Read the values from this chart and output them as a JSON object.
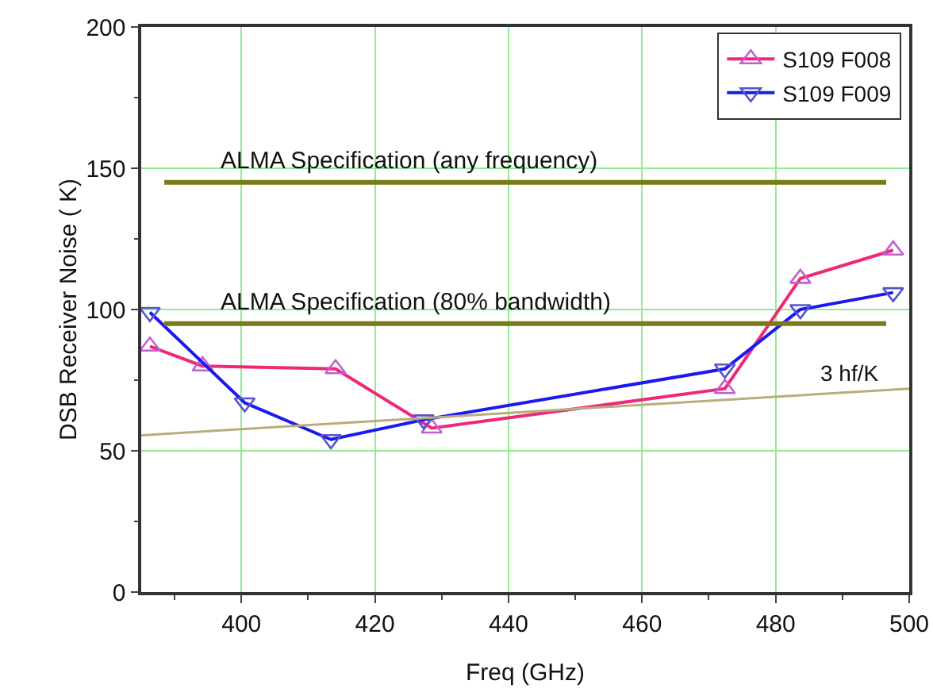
{
  "chart_data": {
    "type": "line",
    "xlabel": "Freq (GHz)",
    "ylabel": "DSB Receiver Noise ( K)",
    "xlim": [
      385,
      500
    ],
    "xticks": [
      400,
      420,
      440,
      460,
      480,
      500
    ],
    "ylim": [
      0,
      200
    ],
    "yticks": [
      0,
      50,
      100,
      150,
      200
    ],
    "grid": true,
    "legend": "top right",
    "line_style": "solid",
    "series": [
      {
        "name": "S109 F008",
        "color": "#f0287a",
        "marker": "triangle",
        "x": [
          386.3,
          394.2,
          414.1,
          428.5,
          472.4,
          483.7,
          497.6
        ],
        "values": [
          87,
          80,
          79,
          58,
          72,
          111,
          121
        ]
      },
      {
        "name": "S109 F009",
        "color": "#1a1aee",
        "marker": "triangle-down",
        "x": [
          386.3,
          400.5,
          413.4,
          427.3,
          472.4,
          483.7,
          497.6
        ],
        "values": [
          99,
          67,
          54,
          61,
          79,
          100,
          106
        ]
      },
      {
        "type": "line",
        "color": "#b8ad7c",
        "marker": "none",
        "x": [
          385,
          500
        ],
        "values": [
          55.5,
          72
        ]
      }
    ],
    "ref_lines": [
      {
        "axis": "y",
        "value": 145,
        "label": "ALMA Specification (any frequency)",
        "color": "#7a7a1a"
      },
      {
        "axis": "y",
        "value": 95,
        "label": "ALMA Specification (80% bandwidth)",
        "color": "#7a7a1a"
      }
    ],
    "annotations": [
      {
        "text": "3 hf/K",
        "x": 491,
        "y": 71
      }
    ]
  }
}
